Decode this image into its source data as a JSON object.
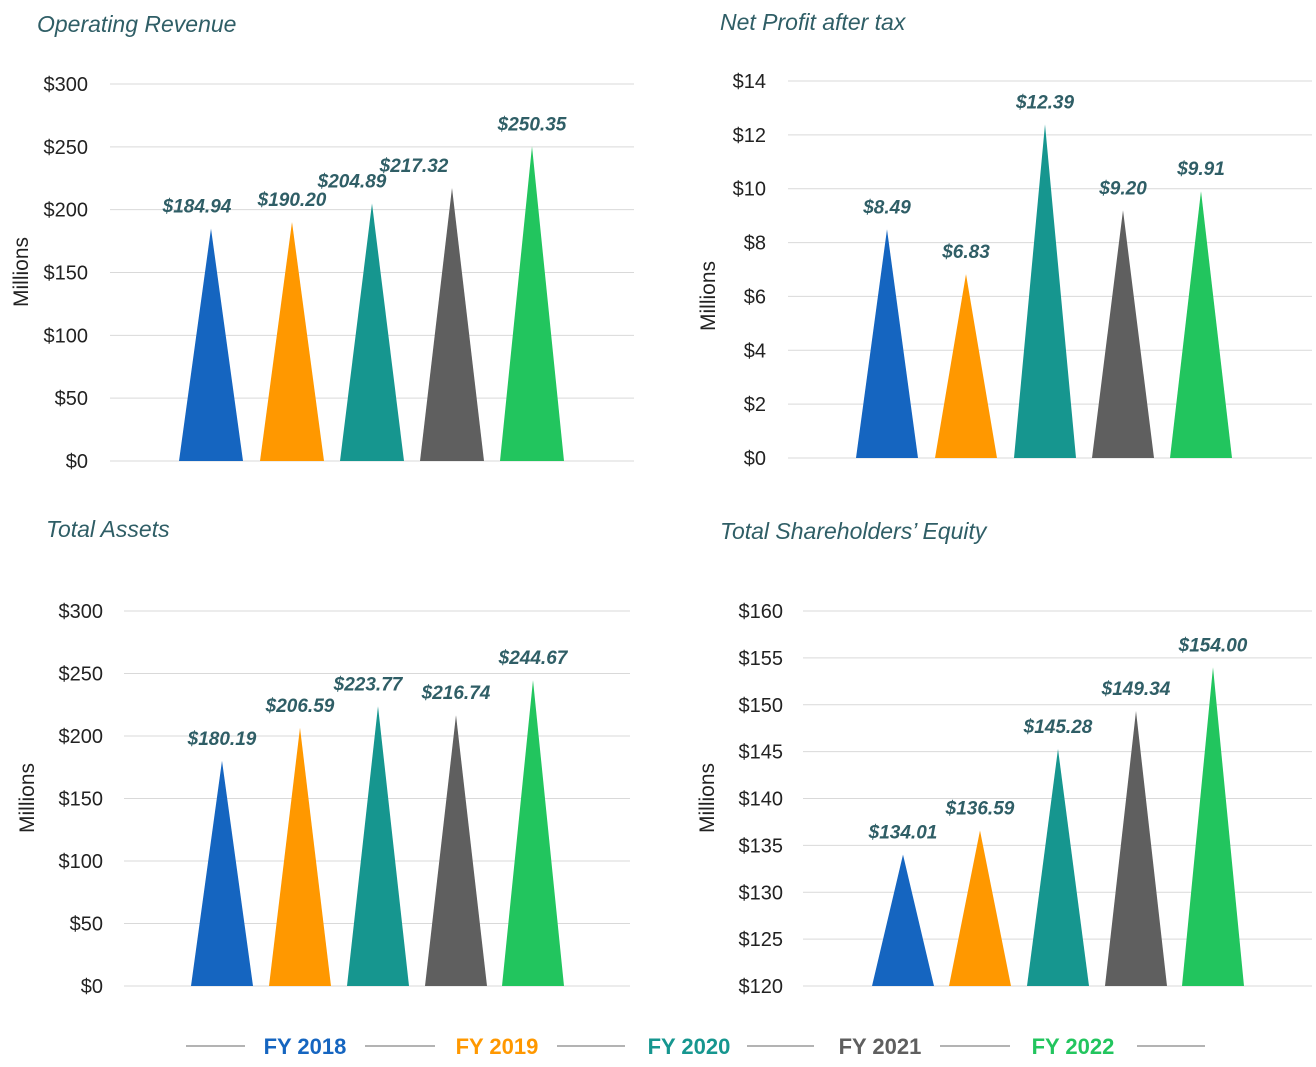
{
  "colors": [
    "#1565c0",
    "#ff9800",
    "#16968f",
    "#5f5f5f",
    "#22c55e"
  ],
  "legend": [
    "FY 2018",
    "FY 2019",
    "FY 2020",
    "FY 2021",
    "FY 2022"
  ],
  "chart_data": [
    {
      "type": "bar",
      "title": "Operating Revenue",
      "ylabel": "Millions",
      "categories": [
        "FY 2018",
        "FY 2019",
        "FY 2020",
        "FY 2021",
        "FY 2022"
      ],
      "values": [
        184.94,
        190.2,
        204.89,
        217.32,
        250.35
      ],
      "value_labels": [
        "$184.94",
        "$190.20",
        "$204.89",
        "$217.32",
        "$250.35"
      ],
      "ylim": [
        0,
        300
      ],
      "yticks": [
        "$0",
        "$50",
        "$100",
        "$150",
        "$200",
        "$250",
        "$300"
      ],
      "grid": true
    },
    {
      "type": "bar",
      "title": "Net Profit after tax",
      "ylabel": "Millions",
      "categories": [
        "FY 2018",
        "FY 2019",
        "FY 2020",
        "FY 2021",
        "FY 2022"
      ],
      "values": [
        8.49,
        6.83,
        12.39,
        9.2,
        9.91
      ],
      "value_labels": [
        "$8.49",
        "$6.83",
        "$12.39",
        "$9.20",
        "$9.91"
      ],
      "ylim": [
        0,
        14
      ],
      "yticks": [
        "$0",
        "$2",
        "$4",
        "$6",
        "$8",
        "$10",
        "$12",
        "$14"
      ],
      "grid": true
    },
    {
      "type": "bar",
      "title": "Total Assets",
      "ylabel": "Millions",
      "categories": [
        "FY 2018",
        "FY 2019",
        "FY 2020",
        "FY 2021",
        "FY 2022"
      ],
      "values": [
        180.19,
        206.59,
        223.77,
        216.74,
        244.67
      ],
      "value_labels": [
        "$180.19",
        "$206.59",
        "$223.77",
        "$216.74",
        "$244.67"
      ],
      "ylim": [
        0,
        300
      ],
      "yticks": [
        "$0",
        "$50",
        "$100",
        "$150",
        "$200",
        "$250",
        "$300"
      ],
      "grid": true
    },
    {
      "type": "bar",
      "title": "Total Shareholders’ Equity",
      "ylabel": "Millions",
      "categories": [
        "FY 2018",
        "FY 2019",
        "FY 2020",
        "FY 2021",
        "FY 2022"
      ],
      "values": [
        134.01,
        136.59,
        145.28,
        149.34,
        154.0
      ],
      "value_labels": [
        "$134.01",
        "$136.59",
        "$145.28",
        "$149.34",
        "$154.00"
      ],
      "ylim": [
        120,
        160
      ],
      "yticks": [
        "$120",
        "$125",
        "$130",
        "$135",
        "$140",
        "$145",
        "$150",
        "$155",
        "$160"
      ],
      "grid": true
    }
  ]
}
